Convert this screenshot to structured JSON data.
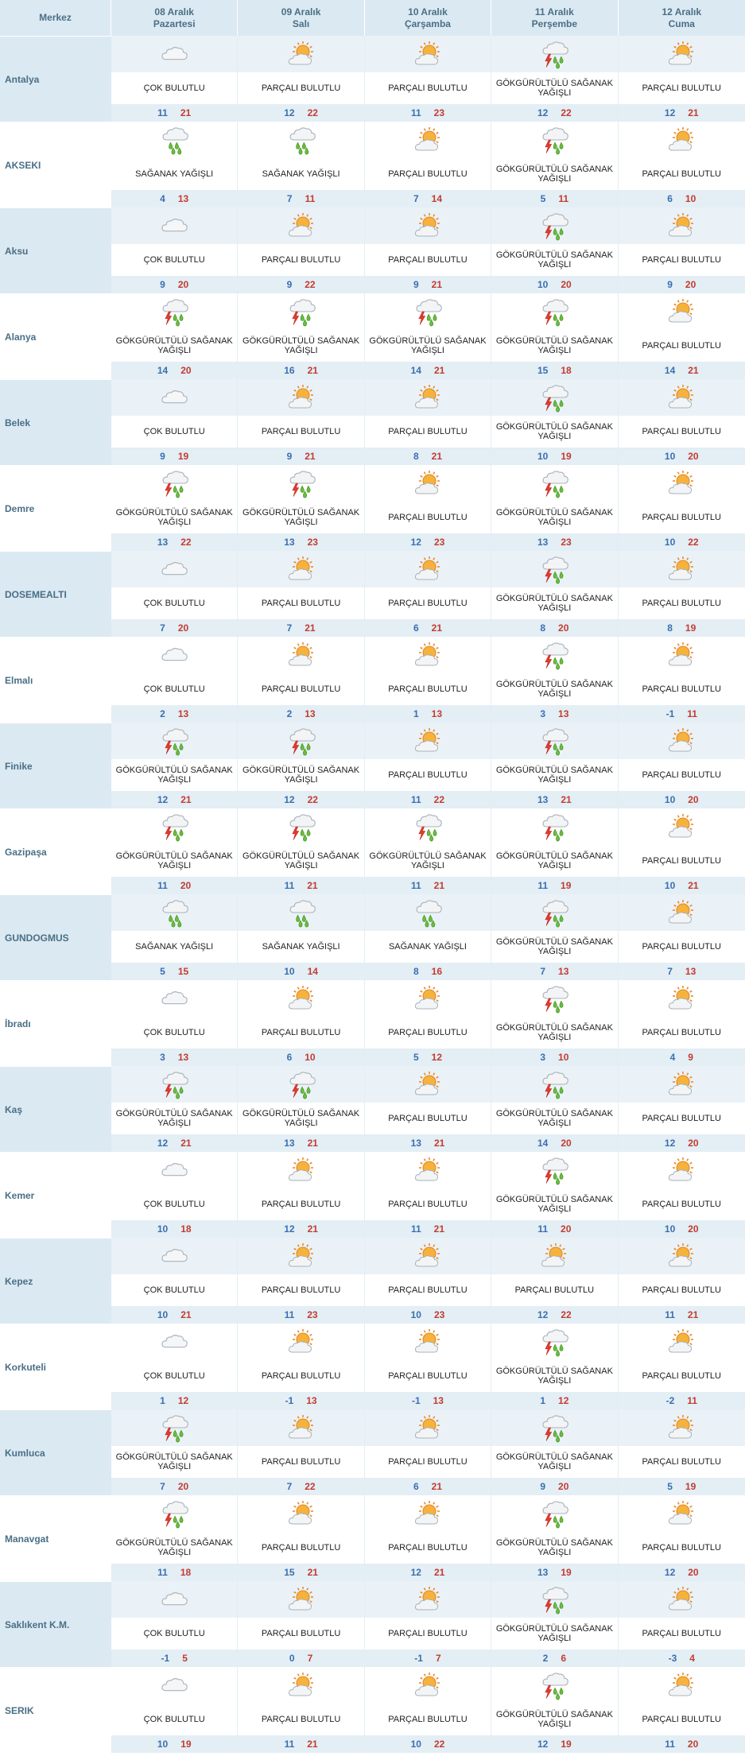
{
  "header": {
    "merkez": "Merkez",
    "days": [
      {
        "date": "08 Aralık",
        "weekday": "Pazartesi"
      },
      {
        "date": "09 Aralık",
        "weekday": "Salı"
      },
      {
        "date": "10 Aralık",
        "weekday": "Çarşamba"
      },
      {
        "date": "11 Aralık",
        "weekday": "Perşembe"
      },
      {
        "date": "12 Aralık",
        "weekday": "Cuma"
      }
    ]
  },
  "conditions": {
    "cok": {
      "icon": "cloud-icon",
      "label": "ÇOK BULUTLU"
    },
    "parcali": {
      "icon": "partly-cloudy-icon",
      "label": "PARÇALI BULUTLU"
    },
    "saganak": {
      "icon": "rain-shower-icon",
      "label": "SAĞANAK YAĞIŞLI"
    },
    "gok": {
      "icon": "thunderstorm-icon",
      "label": "GÖKGÜRÜLTÜLÜ SAĞANAK YAĞIŞLI"
    }
  },
  "colors": {
    "header_bg": "#dbe9f2",
    "city_text": "#4a6f86",
    "low_temp": "#3a6fb0",
    "high_temp": "#c43b2f"
  },
  "rows": [
    {
      "city": "Antalya",
      "days": [
        {
          "cond": "cok",
          "low": "11",
          "high": "21"
        },
        {
          "cond": "parcali",
          "low": "12",
          "high": "22"
        },
        {
          "cond": "parcali",
          "low": "11",
          "high": "23"
        },
        {
          "cond": "gok",
          "low": "12",
          "high": "22"
        },
        {
          "cond": "parcali",
          "low": "12",
          "high": "21"
        }
      ]
    },
    {
      "city": "AKSEKI",
      "days": [
        {
          "cond": "saganak",
          "low": "4",
          "high": "13"
        },
        {
          "cond": "saganak",
          "low": "7",
          "high": "11"
        },
        {
          "cond": "parcali",
          "low": "7",
          "high": "14"
        },
        {
          "cond": "gok",
          "low": "5",
          "high": "11"
        },
        {
          "cond": "parcali",
          "low": "6",
          "high": "10"
        }
      ]
    },
    {
      "city": "Aksu",
      "days": [
        {
          "cond": "cok",
          "low": "9",
          "high": "20"
        },
        {
          "cond": "parcali",
          "low": "9",
          "high": "22"
        },
        {
          "cond": "parcali",
          "low": "9",
          "high": "21"
        },
        {
          "cond": "gok",
          "low": "10",
          "high": "20"
        },
        {
          "cond": "parcali",
          "low": "9",
          "high": "20"
        }
      ]
    },
    {
      "city": "Alanya",
      "days": [
        {
          "cond": "gok",
          "low": "14",
          "high": "20"
        },
        {
          "cond": "gok",
          "low": "16",
          "high": "21"
        },
        {
          "cond": "gok",
          "low": "14",
          "high": "21"
        },
        {
          "cond": "gok",
          "low": "15",
          "high": "18"
        },
        {
          "cond": "parcali",
          "low": "14",
          "high": "21"
        }
      ]
    },
    {
      "city": "Belek",
      "days": [
        {
          "cond": "cok",
          "low": "9",
          "high": "19"
        },
        {
          "cond": "parcali",
          "low": "9",
          "high": "21"
        },
        {
          "cond": "parcali",
          "low": "8",
          "high": "21"
        },
        {
          "cond": "gok",
          "low": "10",
          "high": "19"
        },
        {
          "cond": "parcali",
          "low": "10",
          "high": "20"
        }
      ]
    },
    {
      "city": "Demre",
      "days": [
        {
          "cond": "gok",
          "low": "13",
          "high": "22"
        },
        {
          "cond": "gok",
          "low": "13",
          "high": "23"
        },
        {
          "cond": "parcali",
          "low": "12",
          "high": "23"
        },
        {
          "cond": "gok",
          "low": "13",
          "high": "23"
        },
        {
          "cond": "parcali",
          "low": "10",
          "high": "22"
        }
      ]
    },
    {
      "city": "DOSEMEALTI",
      "days": [
        {
          "cond": "cok",
          "low": "7",
          "high": "20"
        },
        {
          "cond": "parcali",
          "low": "7",
          "high": "21"
        },
        {
          "cond": "parcali",
          "low": "6",
          "high": "21"
        },
        {
          "cond": "gok",
          "low": "8",
          "high": "20"
        },
        {
          "cond": "parcali",
          "low": "8",
          "high": "19"
        }
      ]
    },
    {
      "city": "Elmalı",
      "days": [
        {
          "cond": "cok",
          "low": "2",
          "high": "13"
        },
        {
          "cond": "parcali",
          "low": "2",
          "high": "13"
        },
        {
          "cond": "parcali",
          "low": "1",
          "high": "13"
        },
        {
          "cond": "gok",
          "low": "3",
          "high": "13"
        },
        {
          "cond": "parcali",
          "low": "-1",
          "high": "11"
        }
      ]
    },
    {
      "city": "Finike",
      "days": [
        {
          "cond": "gok",
          "low": "12",
          "high": "21"
        },
        {
          "cond": "gok",
          "low": "12",
          "high": "22"
        },
        {
          "cond": "parcali",
          "low": "11",
          "high": "22"
        },
        {
          "cond": "gok",
          "low": "13",
          "high": "21"
        },
        {
          "cond": "parcali",
          "low": "10",
          "high": "20"
        }
      ]
    },
    {
      "city": "Gazipaşa",
      "days": [
        {
          "cond": "gok",
          "low": "11",
          "high": "20"
        },
        {
          "cond": "gok",
          "low": "11",
          "high": "21"
        },
        {
          "cond": "gok",
          "low": "11",
          "high": "21"
        },
        {
          "cond": "gok",
          "low": "11",
          "high": "19"
        },
        {
          "cond": "parcali",
          "low": "10",
          "high": "21"
        }
      ]
    },
    {
      "city": "GUNDOGMUS",
      "days": [
        {
          "cond": "saganak",
          "low": "5",
          "high": "15"
        },
        {
          "cond": "saganak",
          "low": "10",
          "high": "14"
        },
        {
          "cond": "saganak",
          "low": "8",
          "high": "16"
        },
        {
          "cond": "gok",
          "low": "7",
          "high": "13"
        },
        {
          "cond": "parcali",
          "low": "7",
          "high": "13"
        }
      ]
    },
    {
      "city": "İbradı",
      "days": [
        {
          "cond": "cok",
          "low": "3",
          "high": "13"
        },
        {
          "cond": "parcali",
          "low": "6",
          "high": "10"
        },
        {
          "cond": "parcali",
          "low": "5",
          "high": "12"
        },
        {
          "cond": "gok",
          "low": "3",
          "high": "10"
        },
        {
          "cond": "parcali",
          "low": "4",
          "high": "9"
        }
      ]
    },
    {
      "city": "Kaş",
      "days": [
        {
          "cond": "gok",
          "low": "12",
          "high": "21"
        },
        {
          "cond": "gok",
          "low": "13",
          "high": "21"
        },
        {
          "cond": "parcali",
          "low": "13",
          "high": "21"
        },
        {
          "cond": "gok",
          "low": "14",
          "high": "20"
        },
        {
          "cond": "parcali",
          "low": "12",
          "high": "20"
        }
      ]
    },
    {
      "city": "Kemer",
      "days": [
        {
          "cond": "cok",
          "low": "10",
          "high": "18"
        },
        {
          "cond": "parcali",
          "low": "12",
          "high": "21"
        },
        {
          "cond": "parcali",
          "low": "11",
          "high": "21"
        },
        {
          "cond": "gok",
          "low": "11",
          "high": "20"
        },
        {
          "cond": "parcali",
          "low": "10",
          "high": "20"
        }
      ]
    },
    {
      "city": "Kepez",
      "days": [
        {
          "cond": "cok",
          "low": "10",
          "high": "21"
        },
        {
          "cond": "parcali",
          "low": "11",
          "high": "23"
        },
        {
          "cond": "parcali",
          "low": "10",
          "high": "23"
        },
        {
          "cond": "parcali",
          "low": "12",
          "high": "22"
        },
        {
          "cond": "parcali",
          "low": "11",
          "high": "21"
        }
      ]
    },
    {
      "city": "Korkuteli",
      "days": [
        {
          "cond": "cok",
          "low": "1",
          "high": "12"
        },
        {
          "cond": "parcali",
          "low": "-1",
          "high": "13"
        },
        {
          "cond": "parcali",
          "low": "-1",
          "high": "13"
        },
        {
          "cond": "gok",
          "low": "1",
          "high": "12"
        },
        {
          "cond": "parcali",
          "low": "-2",
          "high": "11"
        }
      ]
    },
    {
      "city": "Kumluca",
      "days": [
        {
          "cond": "gok",
          "low": "7",
          "high": "20"
        },
        {
          "cond": "parcali",
          "low": "7",
          "high": "22"
        },
        {
          "cond": "parcali",
          "low": "6",
          "high": "21"
        },
        {
          "cond": "gok",
          "low": "9",
          "high": "20"
        },
        {
          "cond": "parcali",
          "low": "5",
          "high": "19"
        }
      ]
    },
    {
      "city": "Manavgat",
      "days": [
        {
          "cond": "gok",
          "low": "11",
          "high": "18"
        },
        {
          "cond": "parcali",
          "low": "15",
          "high": "21"
        },
        {
          "cond": "parcali",
          "low": "12",
          "high": "21"
        },
        {
          "cond": "gok",
          "low": "13",
          "high": "19"
        },
        {
          "cond": "parcali",
          "low": "12",
          "high": "20"
        }
      ]
    },
    {
      "city": "Saklıkent K.M.",
      "days": [
        {
          "cond": "cok",
          "low": "-1",
          "high": "5"
        },
        {
          "cond": "parcali",
          "low": "0",
          "high": "7"
        },
        {
          "cond": "parcali",
          "low": "-1",
          "high": "7"
        },
        {
          "cond": "gok",
          "low": "2",
          "high": "6"
        },
        {
          "cond": "parcali",
          "low": "-3",
          "high": "4"
        }
      ]
    },
    {
      "city": "SERIK",
      "days": [
        {
          "cond": "cok",
          "low": "10",
          "high": "19"
        },
        {
          "cond": "parcali",
          "low": "11",
          "high": "21"
        },
        {
          "cond": "parcali",
          "low": "10",
          "high": "22"
        },
        {
          "cond": "gok",
          "low": "12",
          "high": "19"
        },
        {
          "cond": "parcali",
          "low": "11",
          "high": "20"
        }
      ]
    }
  ]
}
